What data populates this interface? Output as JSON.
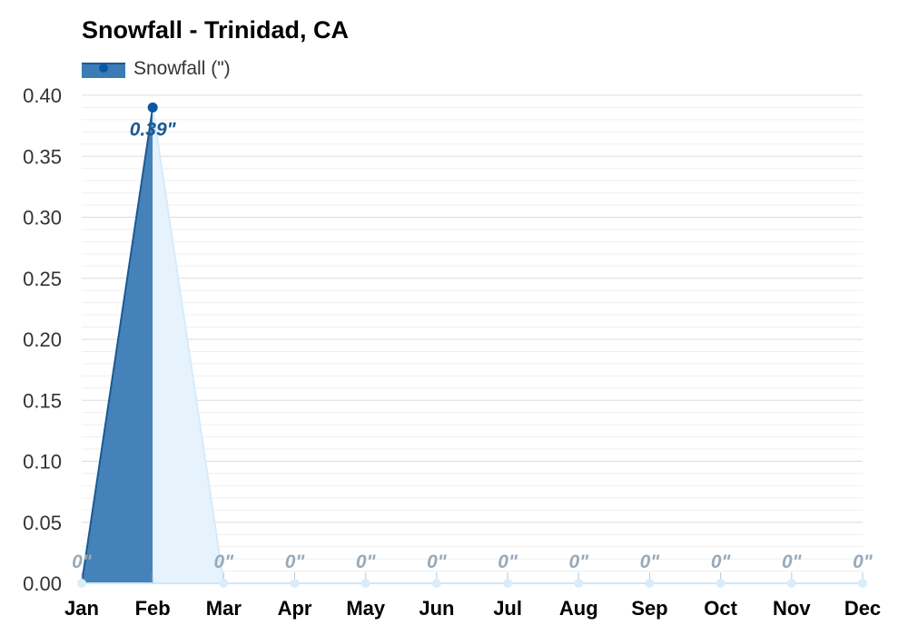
{
  "chart_data": {
    "type": "area",
    "title": "Snowfall - Trinidad, CA",
    "xlabel": "",
    "ylabel": "",
    "categories": [
      "Jan",
      "Feb",
      "Mar",
      "Apr",
      "May",
      "Jun",
      "Jul",
      "Aug",
      "Sep",
      "Oct",
      "Nov",
      "Dec"
    ],
    "series": [
      {
        "name": "Snowfall (\")",
        "values": [
          0,
          0.39,
          0,
          0,
          0,
          0,
          0,
          0,
          0,
          0,
          0,
          0
        ],
        "value_labels": [
          "0\"",
          "0.39\"",
          "0\"",
          "0\"",
          "0\"",
          "0\"",
          "0\"",
          "0\"",
          "0\"",
          "0\"",
          "0\"",
          "0\""
        ]
      }
    ],
    "ylim": [
      0,
      0.4
    ],
    "yticks": [
      0,
      0.05,
      0.1,
      0.15,
      0.2,
      0.25,
      0.3,
      0.35,
      0.4
    ],
    "ytick_labels": [
      "0.00",
      "0.05",
      "0.10",
      "0.15",
      "0.20",
      "0.25",
      "0.30",
      "0.35",
      "0.40"
    ],
    "grid": true,
    "legend_position": "top-left",
    "highlighted_month": "Feb",
    "colors": {
      "area_dark": "#3b7bb6",
      "area_light": "#e6f3fd",
      "line": "#1a5a93",
      "marker": "#0b57a4",
      "label_active": "#1a5a93",
      "label_zero": "#99aab8",
      "grid_major": "#dddddd",
      "grid_minor": "#efefef",
      "tick_text": "#333333"
    }
  }
}
